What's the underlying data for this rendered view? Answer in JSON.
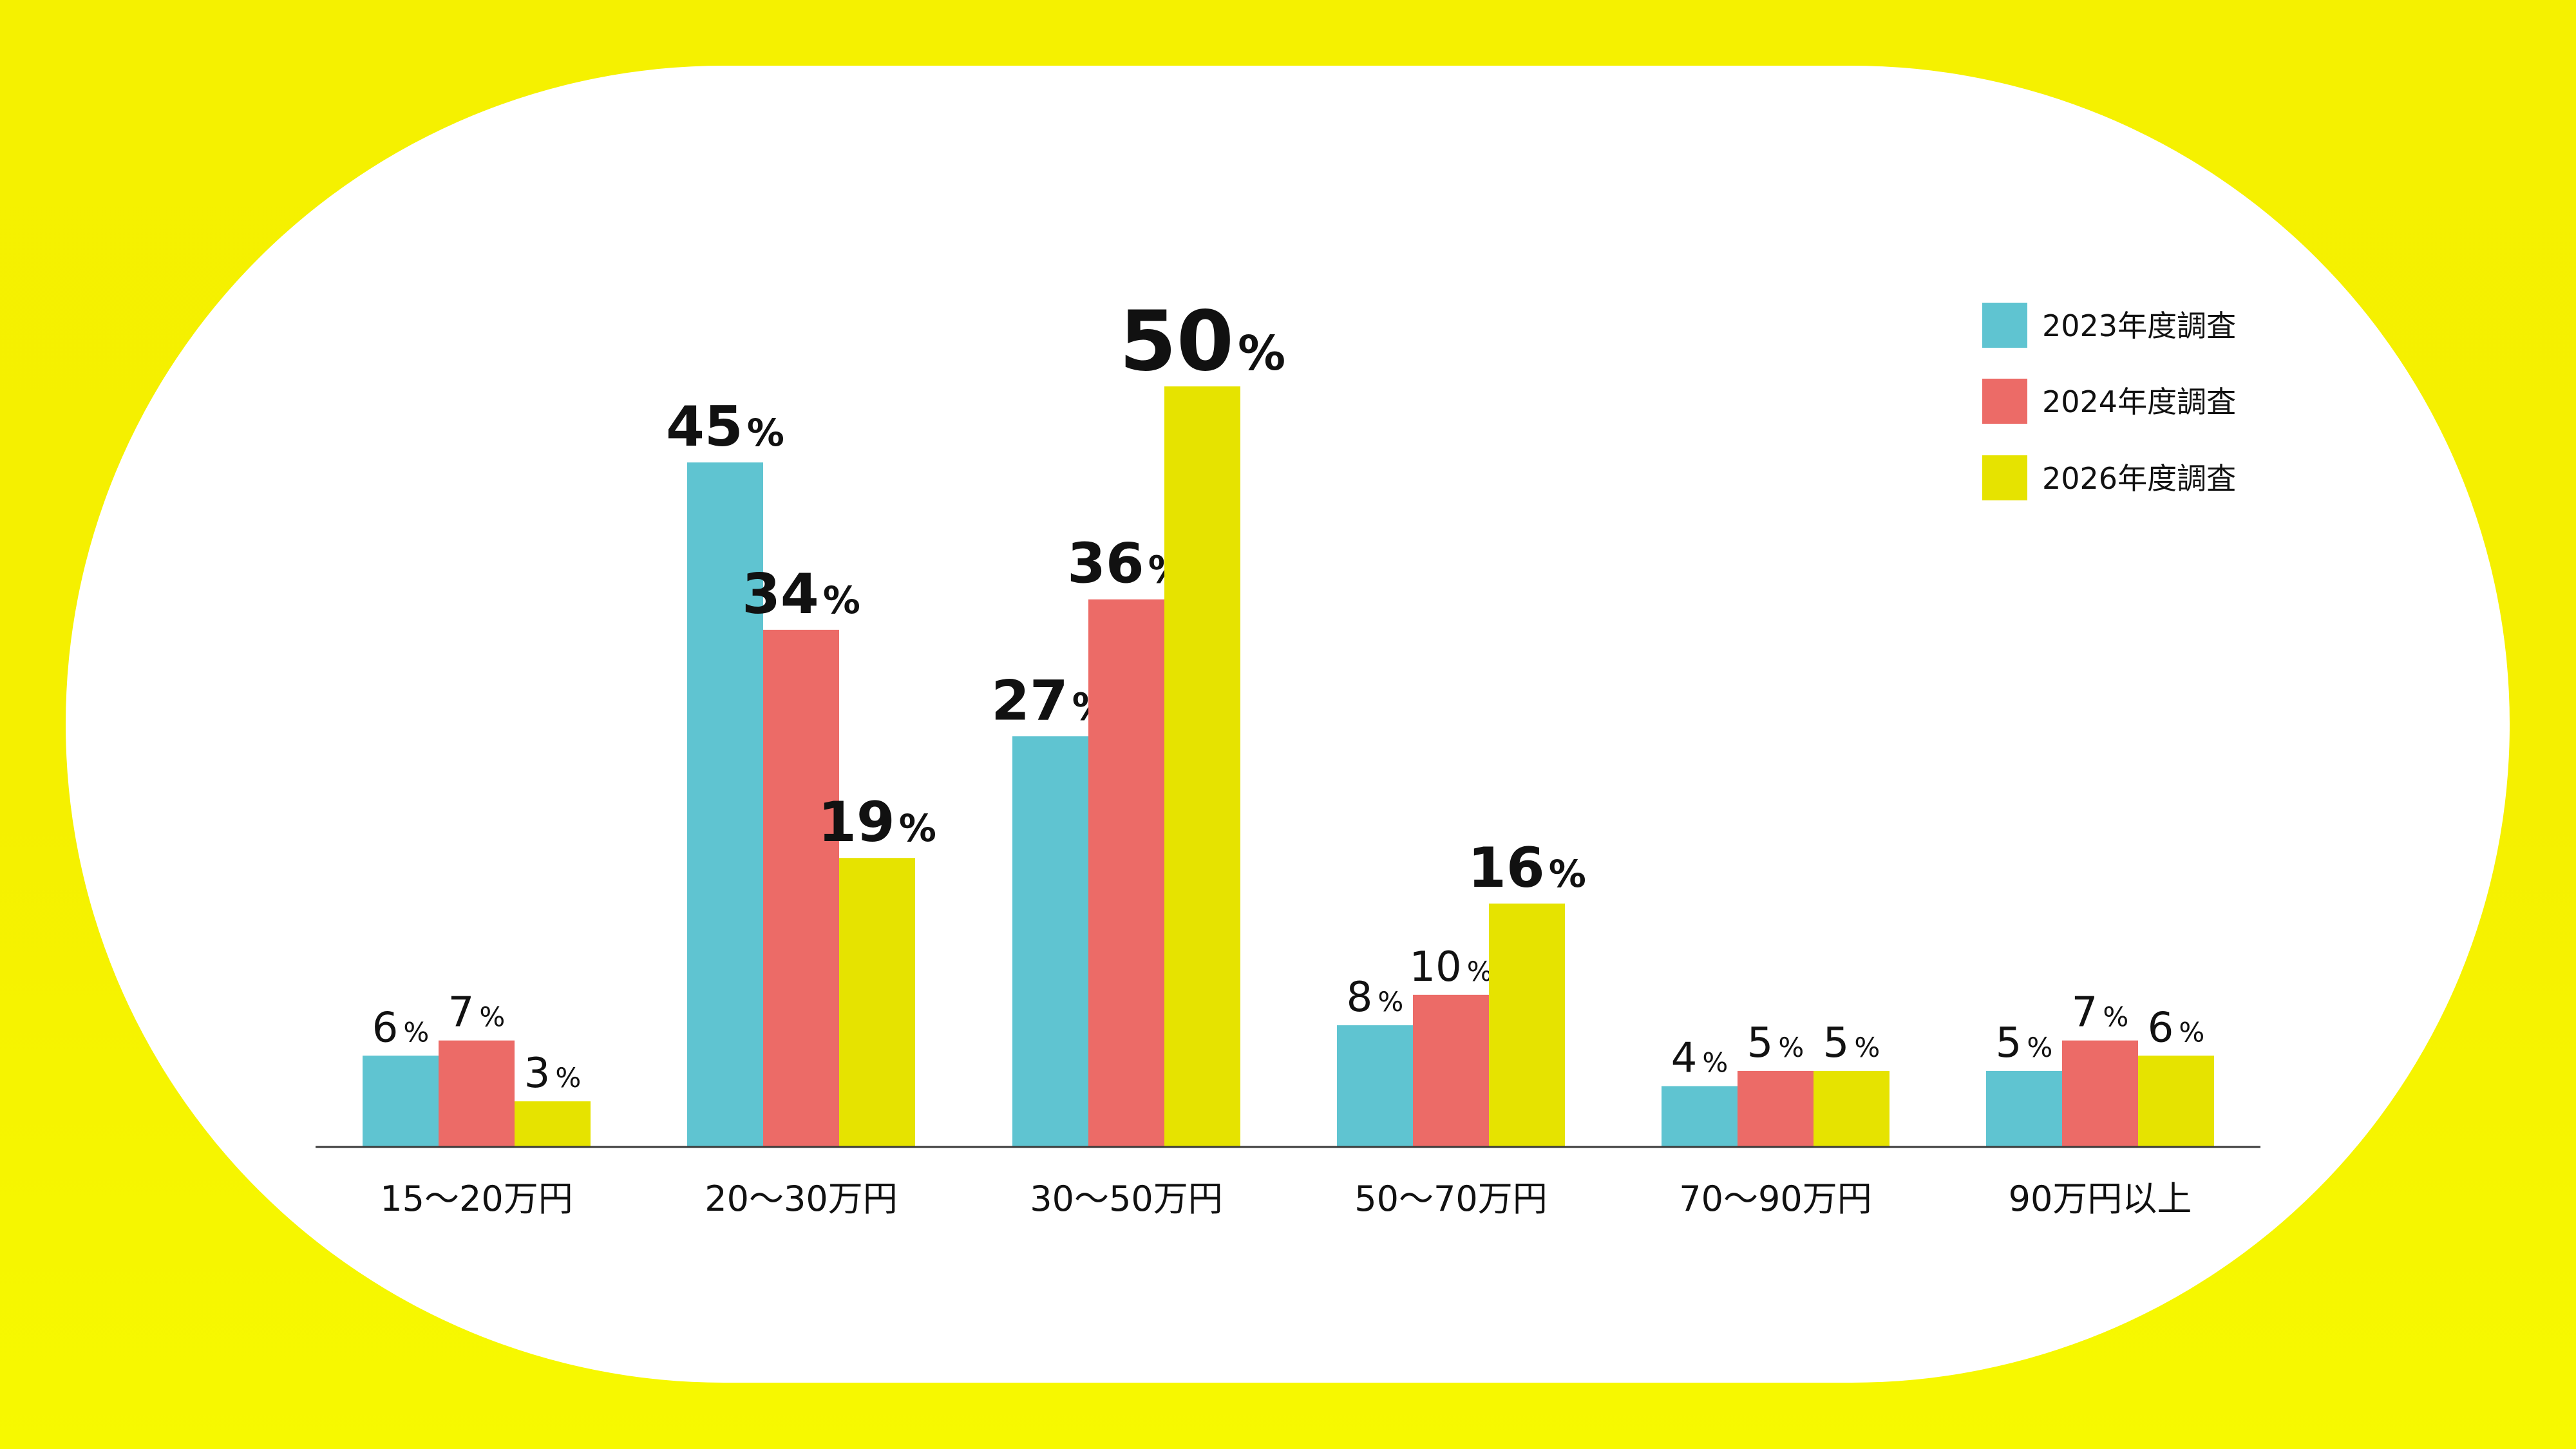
{
  "colors": {
    "background": "#f5f100",
    "panel": "#ffffff",
    "axis": "#3a3a3a",
    "text": "#111111",
    "series": [
      "#5fc4d1",
      "#ec6b67",
      "#e6e300"
    ]
  },
  "chart_data": {
    "type": "bar",
    "categories": [
      "15〜20万円",
      "20〜30万円",
      "30〜50万円",
      "50〜70万円",
      "70〜90万円",
      "90万円以上"
    ],
    "ylim": [
      0,
      50
    ],
    "grid": false,
    "legend_position": "top-right",
    "series": [
      {
        "name": "2023年度調査",
        "values": [
          6,
          45,
          27,
          8,
          4,
          5
        ]
      },
      {
        "name": "2024年度調査",
        "values": [
          7,
          34,
          36,
          10,
          5,
          7
        ]
      },
      {
        "name": "2026年度調査",
        "values": [
          3,
          19,
          50,
          16,
          5,
          6
        ]
      }
    ],
    "value_suffix": "%",
    "emphasized_labels": [
      {
        "category": "20〜30万円",
        "series": "2023年度調査"
      },
      {
        "category": "20〜30万円",
        "series": "2024年度調査"
      },
      {
        "category": "20〜30万円",
        "series": "2026年度調査"
      },
      {
        "category": "30〜50万円",
        "series": "2023年度調査"
      },
      {
        "category": "30〜50万円",
        "series": "2024年度調査"
      },
      {
        "category": "30〜50万円",
        "series": "2026年度調査"
      },
      {
        "category": "50〜70万円",
        "series": "2026年度調査"
      }
    ]
  }
}
